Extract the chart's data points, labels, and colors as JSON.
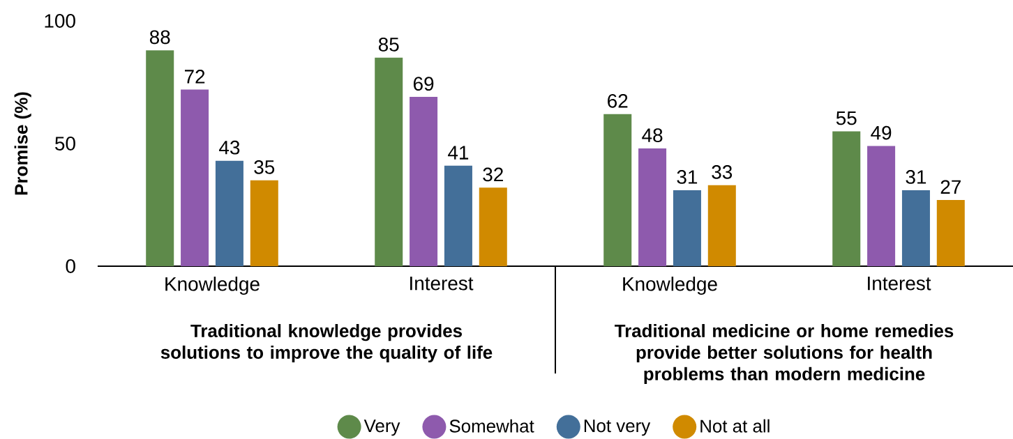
{
  "chart_data": {
    "type": "bar",
    "ylabel": "Promise (%)",
    "categories": [
      "Knowledge",
      "Interest",
      "Knowledge",
      "Interest"
    ],
    "series": [
      {
        "name": "Very",
        "color": "#5e8a4a",
        "values": [
          88,
          85,
          62,
          55
        ]
      },
      {
        "name": "Somewhat",
        "color": "#8e5aad",
        "values": [
          72,
          69,
          48,
          49
        ]
      },
      {
        "name": "Not very",
        "color": "#436f99",
        "values": [
          43,
          41,
          31,
          31
        ]
      },
      {
        "name": "Not at all",
        "color": "#d08a00",
        "values": [
          35,
          32,
          33,
          27
        ]
      }
    ],
    "ylim": [
      0,
      100
    ],
    "yticks": [
      0,
      50,
      100
    ],
    "data_labels": true,
    "legend": "bottom",
    "annotations": [
      "Traditional knowledge provides solutions to improve the quality of life",
      "Traditional medicine or home remedies provide better solutions for health problems than modern medicine"
    ]
  }
}
